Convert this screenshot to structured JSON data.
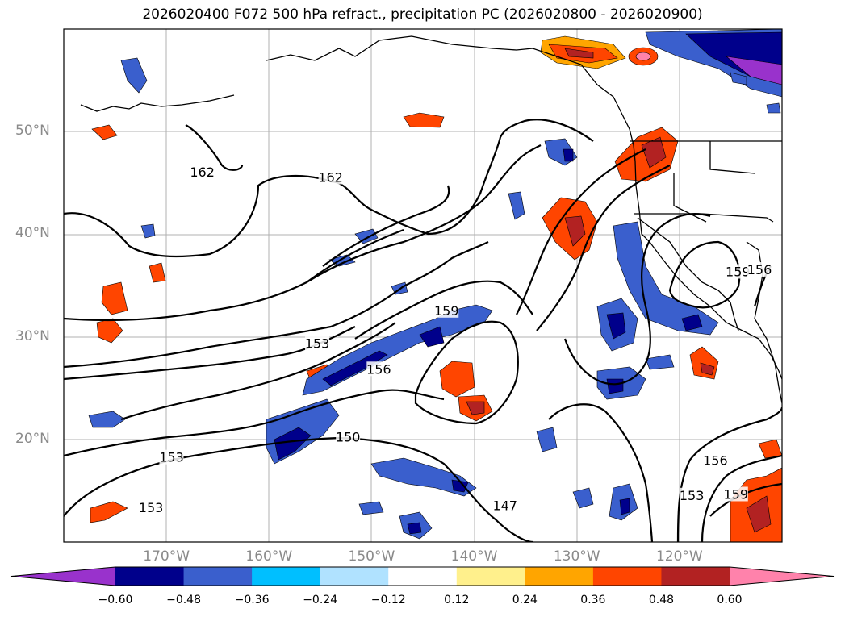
{
  "title": "2026020400 F072 500 hPa refract., precipitation PC (2026020800 - 2026020900)",
  "lat_labels": [
    {
      "text": "50°N",
      "lat": 50
    },
    {
      "text": "40°N",
      "lat": 40
    },
    {
      "text": "30°N",
      "lat": 30
    },
    {
      "text": "20°N",
      "lat": 20
    }
  ],
  "lon_labels": [
    {
      "text": "170°W",
      "lon": -170
    },
    {
      "text": "160°W",
      "lon": -160
    },
    {
      "text": "150°W",
      "lon": -150
    },
    {
      "text": "140°W",
      "lon": -140
    },
    {
      "text": "130°W",
      "lon": -130
    },
    {
      "text": "120°W",
      "lon": -120
    }
  ],
  "extent": {
    "lon_min": -180,
    "lon_max": -110,
    "lat_min": 10,
    "lat_max": 60
  },
  "contour_labels": [
    {
      "text": "162",
      "lon": -166.5,
      "lat": 46
    },
    {
      "text": "162",
      "lon": -154,
      "lat": 45.5
    },
    {
      "text": "159",
      "lon": -142.7,
      "lat": 32.5
    },
    {
      "text": "156",
      "lon": -149.3,
      "lat": 26.8
    },
    {
      "text": "153",
      "lon": -155.3,
      "lat": 29.3
    },
    {
      "text": "153",
      "lon": -169.5,
      "lat": 18.2
    },
    {
      "text": "150",
      "lon": -152.3,
      "lat": 20.2
    },
    {
      "text": "147",
      "lon": -137,
      "lat": 13.5
    },
    {
      "text": "153",
      "lon": -171.5,
      "lat": 13.3
    },
    {
      "text": "153",
      "lon": -118.8,
      "lat": 14.5
    },
    {
      "text": "156",
      "lon": -116.5,
      "lat": 17.9
    },
    {
      "text": "159",
      "lon": -114.5,
      "lat": 14.6
    },
    {
      "text": "159",
      "lon": -114.3,
      "lat": 36.3
    },
    {
      "text": "156",
      "lon": -112.2,
      "lat": 36.5
    }
  ],
  "colorbar": {
    "ticks": [
      "−0.60",
      "−0.48",
      "−0.36",
      "−0.24",
      "−0.12",
      "0.12",
      "0.24",
      "0.36",
      "0.48",
      "0.60"
    ],
    "colors": [
      "#9932cc",
      "#00008b",
      "#3a5fcd",
      "#00bfff",
      "#b0e2ff",
      "#ffffff",
      "#fff08c",
      "#ffa500",
      "#ff4500",
      "#b22222",
      "#ff82ab"
    ]
  }
}
